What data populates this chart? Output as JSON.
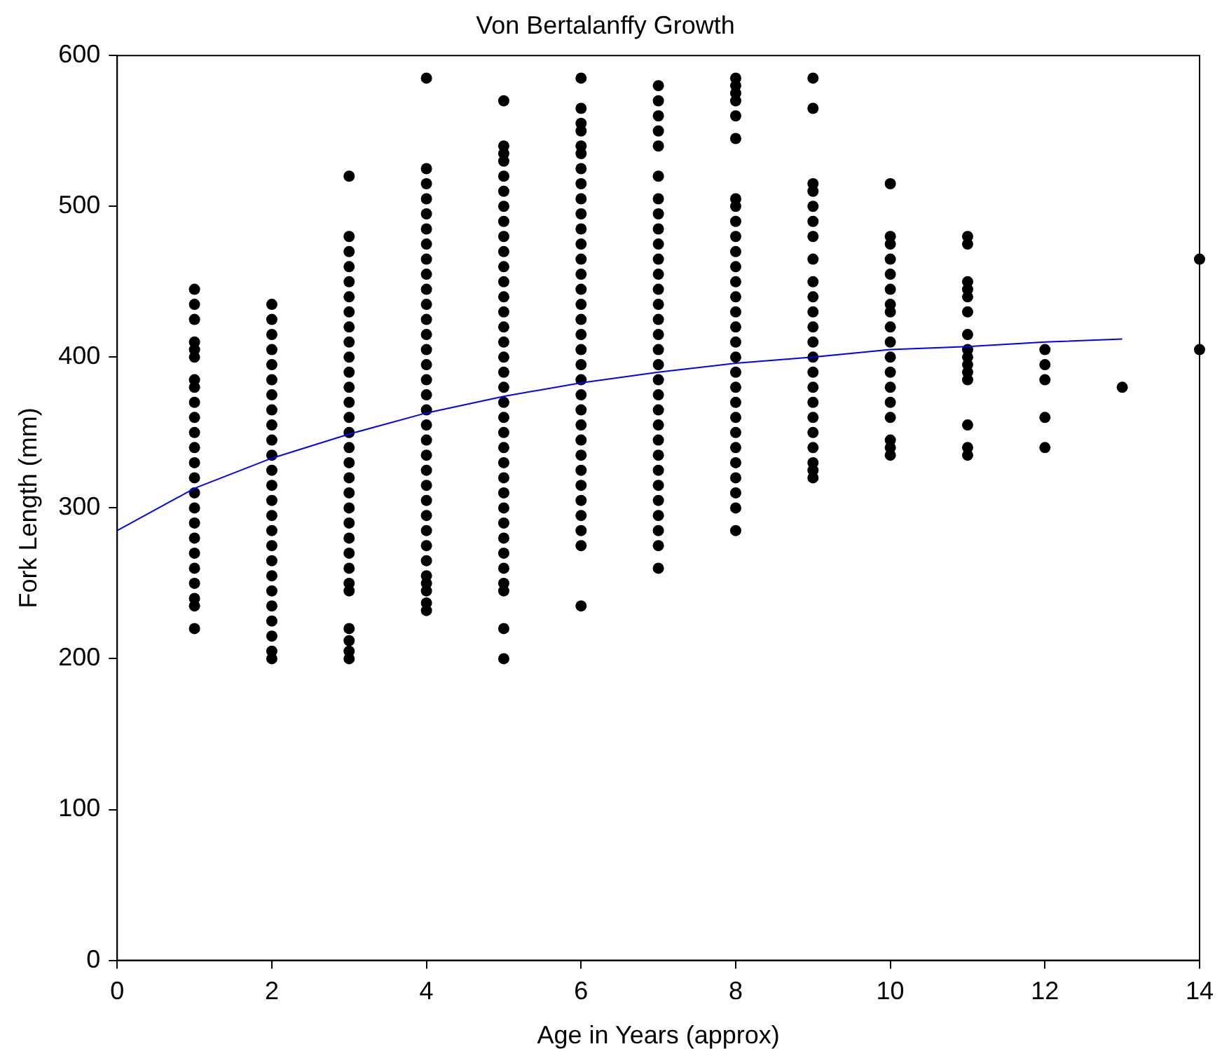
{
  "chart_data": {
    "type": "scatter",
    "title": "Von Bertalanffy Growth",
    "xlabel": "Age in Years (approx)",
    "ylabel": "Fork Length (mm)",
    "xlim": [
      0,
      14
    ],
    "xticks": [
      0,
      2,
      4,
      6,
      8,
      10,
      12,
      14
    ],
    "ylim": [
      0,
      600
    ],
    "yticks": [
      0,
      100,
      200,
      300,
      400,
      500,
      600
    ],
    "grid": false,
    "legend": false,
    "marker": "circle",
    "series": [
      {
        "color": "#000000",
        "x": [
          1,
          1,
          1,
          1,
          1,
          1,
          1,
          1,
          1,
          1,
          1,
          1,
          1,
          1,
          1,
          1,
          1,
          1,
          1,
          1,
          1,
          1,
          1,
          1
        ],
        "values": [
          445,
          435,
          425,
          410,
          405,
          400,
          385,
          380,
          370,
          360,
          350,
          340,
          330,
          320,
          310,
          300,
          290,
          280,
          270,
          260,
          250,
          240,
          235,
          220
        ]
      },
      {
        "color": "#000000",
        "x": [
          2,
          2,
          2,
          2,
          2,
          2,
          2,
          2,
          2,
          2,
          2,
          2,
          2,
          2,
          2,
          2,
          2,
          2,
          2,
          2,
          2,
          2,
          2,
          2,
          2
        ],
        "values": [
          435,
          425,
          415,
          405,
          395,
          385,
          375,
          365,
          355,
          345,
          335,
          325,
          315,
          305,
          295,
          285,
          275,
          265,
          255,
          245,
          235,
          225,
          215,
          205,
          200
        ]
      },
      {
        "color": "#000000",
        "x": [
          3,
          3,
          3,
          3,
          3,
          3,
          3,
          3,
          3,
          3,
          3,
          3,
          3,
          3,
          3,
          3,
          3,
          3,
          3,
          3,
          3,
          3,
          3,
          3,
          3,
          3,
          3,
          3,
          3,
          3
        ],
        "values": [
          520,
          480,
          470,
          460,
          450,
          440,
          430,
          420,
          410,
          400,
          390,
          380,
          370,
          360,
          350,
          340,
          330,
          320,
          310,
          300,
          290,
          280,
          270,
          260,
          250,
          245,
          220,
          212,
          205,
          200
        ]
      },
      {
        "color": "#000000",
        "x": [
          4,
          4,
          4,
          4,
          4,
          4,
          4,
          4,
          4,
          4,
          4,
          4,
          4,
          4,
          4,
          4,
          4,
          4,
          4,
          4,
          4,
          4,
          4,
          4,
          4,
          4,
          4,
          4,
          4,
          4,
          4,
          4,
          4
        ],
        "values": [
          585,
          525,
          515,
          505,
          495,
          485,
          475,
          465,
          455,
          445,
          435,
          425,
          415,
          405,
          395,
          385,
          375,
          365,
          355,
          345,
          335,
          325,
          315,
          305,
          295,
          285,
          275,
          265,
          255,
          250,
          245,
          237,
          232
        ]
      },
      {
        "color": "#000000",
        "x": [
          5,
          5,
          5,
          5,
          5,
          5,
          5,
          5,
          5,
          5,
          5,
          5,
          5,
          5,
          5,
          5,
          5,
          5,
          5,
          5,
          5,
          5,
          5,
          5,
          5,
          5,
          5,
          5,
          5,
          5,
          5,
          5,
          5,
          5,
          5
        ],
        "values": [
          570,
          540,
          535,
          530,
          520,
          510,
          500,
          490,
          480,
          470,
          460,
          450,
          440,
          430,
          420,
          410,
          400,
          390,
          380,
          370,
          360,
          350,
          340,
          330,
          320,
          310,
          300,
          290,
          280,
          270,
          260,
          250,
          245,
          220,
          200
        ]
      },
      {
        "color": "#000000",
        "x": [
          6,
          6,
          6,
          6,
          6,
          6,
          6,
          6,
          6,
          6,
          6,
          6,
          6,
          6,
          6,
          6,
          6,
          6,
          6,
          6,
          6,
          6,
          6,
          6,
          6,
          6,
          6,
          6,
          6,
          6,
          6,
          6,
          6
        ],
        "values": [
          585,
          565,
          555,
          550,
          540,
          535,
          525,
          515,
          505,
          495,
          485,
          475,
          465,
          455,
          445,
          435,
          425,
          415,
          405,
          395,
          385,
          375,
          365,
          355,
          345,
          335,
          325,
          315,
          305,
          295,
          285,
          275,
          235
        ]
      },
      {
        "color": "#000000",
        "x": [
          7,
          7,
          7,
          7,
          7,
          7,
          7,
          7,
          7,
          7,
          7,
          7,
          7,
          7,
          7,
          7,
          7,
          7,
          7,
          7,
          7,
          7,
          7,
          7,
          7,
          7,
          7,
          7,
          7,
          7,
          7
        ],
        "values": [
          580,
          570,
          560,
          550,
          540,
          520,
          505,
          495,
          485,
          475,
          465,
          455,
          445,
          435,
          425,
          415,
          405,
          395,
          385,
          375,
          365,
          355,
          345,
          335,
          325,
          315,
          305,
          295,
          285,
          275,
          260
        ]
      },
      {
        "color": "#000000",
        "x": [
          8,
          8,
          8,
          8,
          8,
          8,
          8,
          8,
          8,
          8,
          8,
          8,
          8,
          8,
          8,
          8,
          8,
          8,
          8,
          8,
          8,
          8,
          8,
          8,
          8,
          8,
          8,
          8,
          8
        ],
        "values": [
          585,
          580,
          575,
          570,
          560,
          545,
          505,
          500,
          490,
          480,
          470,
          460,
          450,
          440,
          430,
          420,
          410,
          400,
          390,
          380,
          370,
          360,
          350,
          340,
          330,
          320,
          310,
          300,
          285
        ]
      },
      {
        "color": "#000000",
        "x": [
          9,
          9,
          9,
          9,
          9,
          9,
          9,
          9,
          9,
          9,
          9,
          9,
          9,
          9,
          9,
          9,
          9,
          9,
          9,
          9,
          9,
          9,
          9
        ],
        "values": [
          585,
          565,
          515,
          510,
          500,
          490,
          480,
          465,
          450,
          440,
          430,
          420,
          410,
          400,
          390,
          380,
          370,
          360,
          350,
          340,
          330,
          325,
          320
        ]
      },
      {
        "color": "#000000",
        "x": [
          10,
          10,
          10,
          10,
          10,
          10,
          10,
          10,
          10,
          10,
          10,
          10,
          10,
          10,
          10,
          10,
          10,
          10
        ],
        "values": [
          515,
          480,
          475,
          465,
          455,
          445,
          435,
          430,
          420,
          410,
          400,
          390,
          380,
          370,
          360,
          345,
          340,
          335
        ]
      },
      {
        "color": "#000000",
        "x": [
          11,
          11,
          11,
          11,
          11,
          11,
          11,
          11,
          11,
          11,
          11,
          11,
          11,
          11,
          11
        ],
        "values": [
          480,
          475,
          450,
          445,
          440,
          430,
          415,
          405,
          400,
          395,
          390,
          385,
          355,
          340,
          335
        ]
      },
      {
        "color": "#000000",
        "x": [
          12,
          12,
          12,
          12,
          12
        ],
        "values": [
          405,
          395,
          385,
          360,
          340
        ]
      },
      {
        "color": "#000000",
        "x": [
          13
        ],
        "values": [
          380
        ]
      },
      {
        "color": "#000000",
        "x": [
          14,
          14
        ],
        "values": [
          465,
          405
        ]
      },
      {
        "type": "line",
        "color": "#0000ff",
        "marker": "none",
        "x": [
          0,
          1,
          2,
          3,
          4,
          5,
          6,
          7,
          8,
          9,
          10,
          11,
          12,
          13
        ],
        "values": [
          285,
          313,
          333,
          349,
          363,
          374,
          383,
          390,
          396,
          400,
          405,
          407,
          410,
          412
        ]
      }
    ]
  }
}
